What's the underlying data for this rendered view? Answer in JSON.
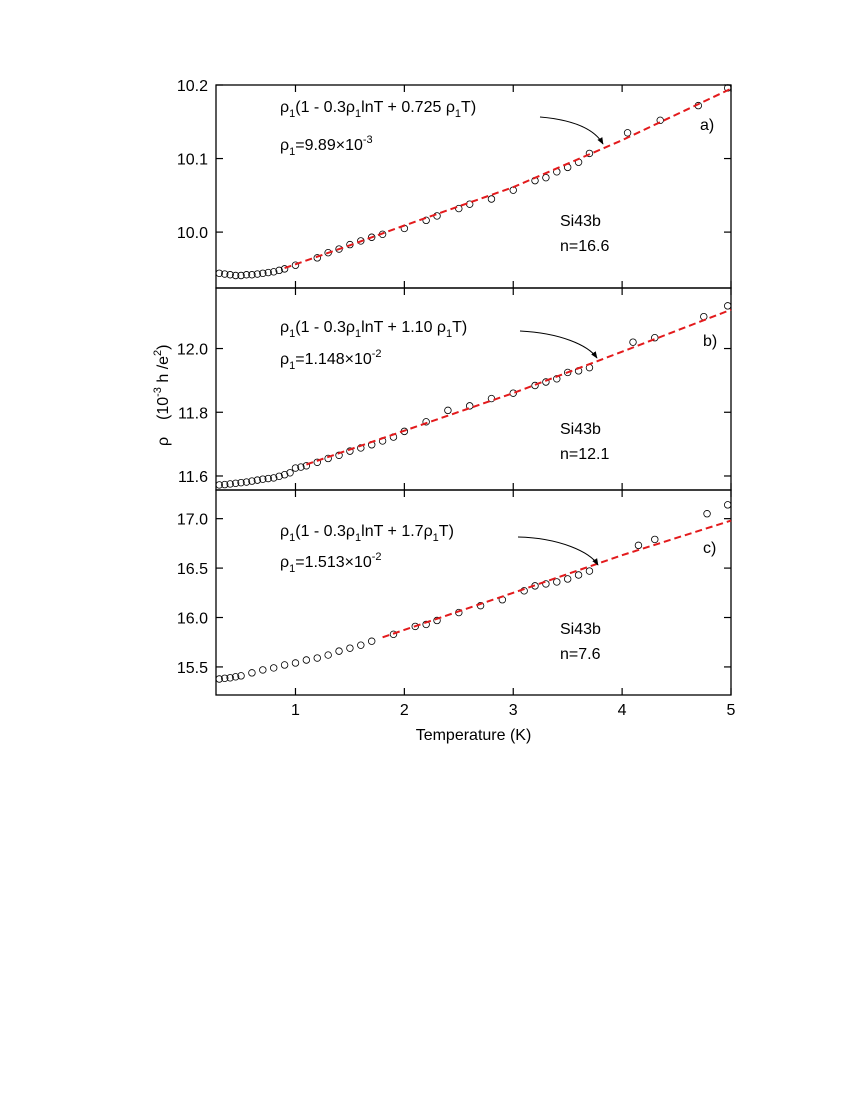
{
  "chart_data": [
    {
      "type": "scatter",
      "panel_label": "a)",
      "sample": "Si43b",
      "density": "n=16.6",
      "fit_label": [
        {
          "text": "ρ"
        },
        {
          "text": "1",
          "shift": "sub"
        },
        {
          "text": "(1 - 0.3ρ"
        },
        {
          "text": "1",
          "shift": "sub"
        },
        {
          "text": "lnT + 0.725 ρ"
        },
        {
          "text": "1",
          "shift": "sub"
        },
        {
          "text": "T)"
        }
      ],
      "param_label": [
        {
          "text": "ρ"
        },
        {
          "text": "1",
          "shift": "sub"
        },
        {
          "text": "=9.89×10"
        },
        {
          "text": "-3",
          "shift": "sup"
        }
      ],
      "xlim": [
        0.27,
        5
      ],
      "xticks": [
        1,
        2,
        3,
        4,
        5
      ],
      "ylim": [
        9.924,
        10.2
      ],
      "yticks": [
        {
          "value": 10.0,
          "label": "10.0"
        },
        10.1,
        10.2
      ],
      "series": [
        {
          "type": "scatter",
          "color": "#000000",
          "x": [
            0.3,
            0.35,
            0.4,
            0.45,
            0.5,
            0.55,
            0.6,
            0.65,
            0.7,
            0.75,
            0.8,
            0.85,
            0.9,
            1.0,
            1.2,
            1.3,
            1.4,
            1.5,
            1.6,
            1.7,
            1.8,
            2.0,
            2.2,
            2.3,
            2.5,
            2.6,
            2.8,
            3.0,
            3.2,
            3.3,
            3.4,
            3.5,
            3.6,
            3.7,
            4.05,
            4.35,
            4.7,
            4.97
          ],
          "values": [
            9.944,
            9.943,
            9.942,
            9.941,
            9.941,
            9.942,
            9.942,
            9.943,
            9.944,
            9.945,
            9.946,
            9.948,
            9.95,
            9.955,
            9.965,
            9.972,
            9.977,
            9.983,
            9.988,
            9.993,
            9.997,
            10.005,
            10.016,
            10.022,
            10.032,
            10.038,
            10.045,
            10.057,
            10.07,
            10.074,
            10.082,
            10.088,
            10.095,
            10.107,
            10.135,
            10.152,
            10.172,
            10.196
          ]
        },
        {
          "type": "line",
          "color": "#e31a1c",
          "dash": true,
          "x": [
            0.9,
            1.5,
            2,
            3,
            4,
            5
          ],
          "values": [
            9.951,
            9.982,
            10.009,
            10.061,
            10.125,
            10.195
          ]
        }
      ]
    },
    {
      "type": "scatter",
      "panel_label": "b)",
      "sample": "Si43b",
      "density": "n=12.1",
      "fit_label": [
        {
          "text": "ρ"
        },
        {
          "text": "1",
          "shift": "sub"
        },
        {
          "text": "(1 - 0.3ρ"
        },
        {
          "text": "1",
          "shift": "sub"
        },
        {
          "text": "lnT + 1.10 ρ"
        },
        {
          "text": "1",
          "shift": "sub"
        },
        {
          "text": "T)"
        }
      ],
      "param_label": [
        {
          "text": "ρ"
        },
        {
          "text": "1",
          "shift": "sub"
        },
        {
          "text": "=1.148×10"
        },
        {
          "text": "-2",
          "shift": "sup"
        }
      ],
      "y_symbol": "ρ",
      "y_units": [
        {
          "text": "(10"
        },
        {
          "text": "-3",
          "shift": "sup"
        },
        {
          "text": " h /e"
        },
        {
          "text": "2",
          "shift": "sup"
        },
        {
          "text": ")"
        }
      ],
      "xlim": [
        0.27,
        5
      ],
      "xticks": [
        1,
        2,
        3,
        4,
        5
      ],
      "ylim": [
        11.556,
        12.19
      ],
      "yticks": [
        11.6,
        11.8,
        {
          "value": 12.0,
          "label": "12.0"
        }
      ],
      "series": [
        {
          "type": "scatter",
          "color": "#000000",
          "x": [
            0.3,
            0.35,
            0.4,
            0.45,
            0.5,
            0.55,
            0.6,
            0.65,
            0.7,
            0.75,
            0.8,
            0.85,
            0.9,
            0.95,
            1.0,
            1.05,
            1.1,
            1.2,
            1.3,
            1.4,
            1.5,
            1.6,
            1.7,
            1.8,
            1.9,
            2.0,
            2.2,
            2.4,
            2.6,
            2.8,
            3.0,
            3.2,
            3.3,
            3.4,
            3.5,
            3.6,
            3.7,
            4.1,
            4.3,
            4.75,
            4.97
          ],
          "values": [
            11.572,
            11.573,
            11.575,
            11.577,
            11.579,
            11.581,
            11.584,
            11.587,
            11.59,
            11.592,
            11.594,
            11.599,
            11.604,
            11.61,
            11.625,
            11.628,
            11.632,
            11.643,
            11.655,
            11.665,
            11.678,
            11.688,
            11.698,
            11.71,
            11.722,
            11.74,
            11.77,
            11.806,
            11.82,
            11.843,
            11.86,
            11.884,
            11.895,
            11.905,
            11.925,
            11.93,
            11.94,
            12.02,
            12.034,
            12.1,
            12.134
          ]
        },
        {
          "type": "line",
          "color": "#e31a1c",
          "dash": true,
          "x": [
            1.1,
            2,
            3,
            4,
            5
          ],
          "values": [
            11.636,
            11.742,
            11.86,
            11.99,
            12.122
          ]
        }
      ]
    },
    {
      "type": "scatter",
      "panel_label": "c)",
      "sample": "Si43b",
      "density": "n=7.6",
      "fit_label": [
        {
          "text": "ρ"
        },
        {
          "text": "1",
          "shift": "sub"
        },
        {
          "text": "(1 - 0.3ρ"
        },
        {
          "text": "1",
          "shift": "sub"
        },
        {
          "text": "lnT + 1.7ρ"
        },
        {
          "text": "1",
          "shift": "sub"
        },
        {
          "text": "T)"
        }
      ],
      "param_label": [
        {
          "text": "ρ"
        },
        {
          "text": "1",
          "shift": "sub"
        },
        {
          "text": "=1.513×10"
        },
        {
          "text": "-2",
          "shift": "sup"
        }
      ],
      "xlabel": "Temperature  (K)",
      "xlim": [
        0.27,
        5
      ],
      "xticks": [
        1,
        2,
        3,
        4,
        5
      ],
      "ylim": [
        15.216,
        17.29
      ],
      "yticks": [
        15.5,
        {
          "value": 16.0,
          "label": "16.0"
        },
        16.5,
        {
          "value": 17.0,
          "label": "17.0"
        }
      ],
      "series": [
        {
          "type": "scatter",
          "color": "#000000",
          "x": [
            0.3,
            0.35,
            0.4,
            0.45,
            0.5,
            0.6,
            0.7,
            0.8,
            0.9,
            1.0,
            1.1,
            1.2,
            1.3,
            1.4,
            1.5,
            1.6,
            1.7,
            1.9,
            2.1,
            2.2,
            2.3,
            2.5,
            2.7,
            2.9,
            3.1,
            3.2,
            3.3,
            3.4,
            3.5,
            3.6,
            3.7,
            4.15,
            4.3,
            4.78,
            4.97
          ],
          "values": [
            15.378,
            15.385,
            15.39,
            15.4,
            15.41,
            15.44,
            15.47,
            15.49,
            15.52,
            15.54,
            15.57,
            15.59,
            15.62,
            15.66,
            15.69,
            15.72,
            15.76,
            15.83,
            15.91,
            15.93,
            15.97,
            16.05,
            16.12,
            16.18,
            16.27,
            16.32,
            16.34,
            16.36,
            16.39,
            16.43,
            16.47,
            16.73,
            16.79,
            17.05,
            17.14
          ]
        },
        {
          "type": "line",
          "color": "#e31a1c",
          "dash": true,
          "x": [
            1.8,
            3,
            4,
            5
          ],
          "values": [
            15.8,
            16.25,
            16.63,
            16.98
          ]
        }
      ]
    }
  ]
}
